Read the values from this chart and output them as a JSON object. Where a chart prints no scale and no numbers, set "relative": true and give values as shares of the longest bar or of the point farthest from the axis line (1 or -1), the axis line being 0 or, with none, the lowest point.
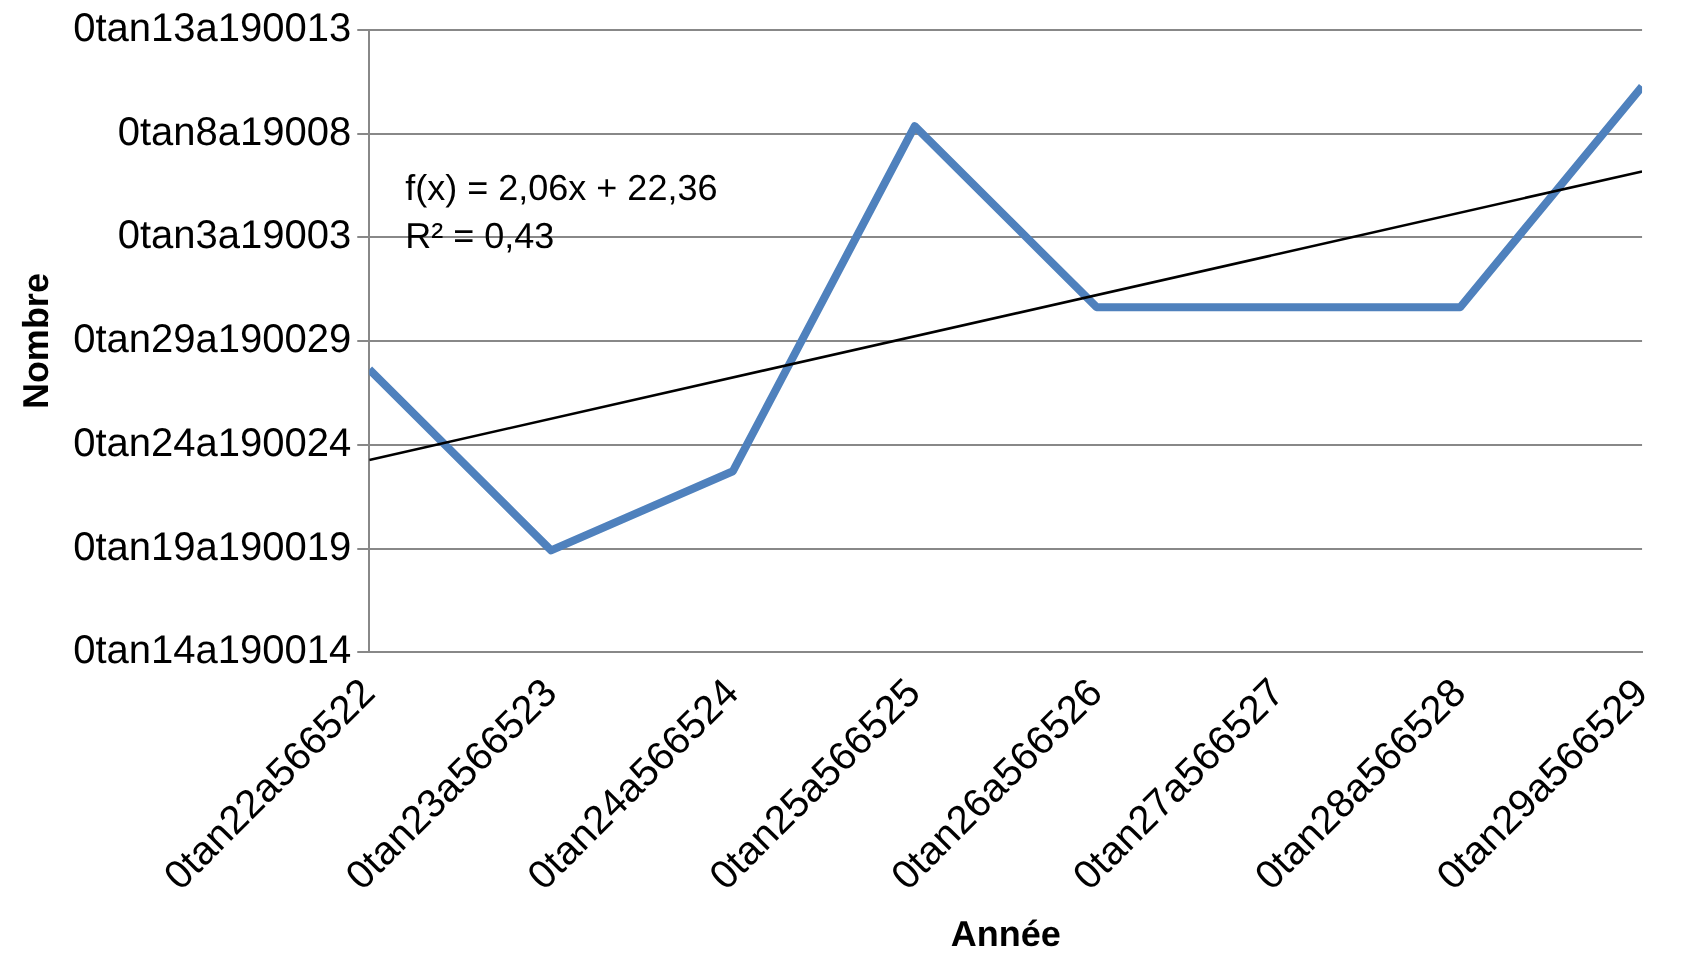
{
  "chart_data": {
    "type": "line",
    "xlabel": "Année",
    "ylabel": "Nombre",
    "relative": true,
    "categories": [
      "0tan22a566522",
      "0tan23a566523",
      "0tan24a566524",
      "0tan25a566525",
      "0tan26a566526",
      "0tan27a566527",
      "0tan28a566528",
      "0tan29a566529"
    ],
    "y_categories": [
      "0tan13a190013",
      "0tan8a19008",
      "0tan3a19003",
      "0tan29a190029",
      "0tan24a190024",
      "0tan19a190019",
      "0tan14a190014"
    ],
    "series": [
      {
        "color": "#4f81bd",
        "values": [
          0.5,
          0.18,
          0.32,
          0.93,
          0.61,
          0.61,
          0.61,
          1
        ]
      },
      {
        "type": "line",
        "color": "#000000",
        "x": [
          "0tan22a566522",
          "0tan29a566529"
        ],
        "values": [
          0.34,
          0.85
        ]
      }
    ],
    "grid": "y",
    "legend": false,
    "marker": "none",
    "line_style": "solid",
    "annotations": [
      "f(x) = 2,06x + 22,36",
      "R² = 0,43"
    ]
  }
}
